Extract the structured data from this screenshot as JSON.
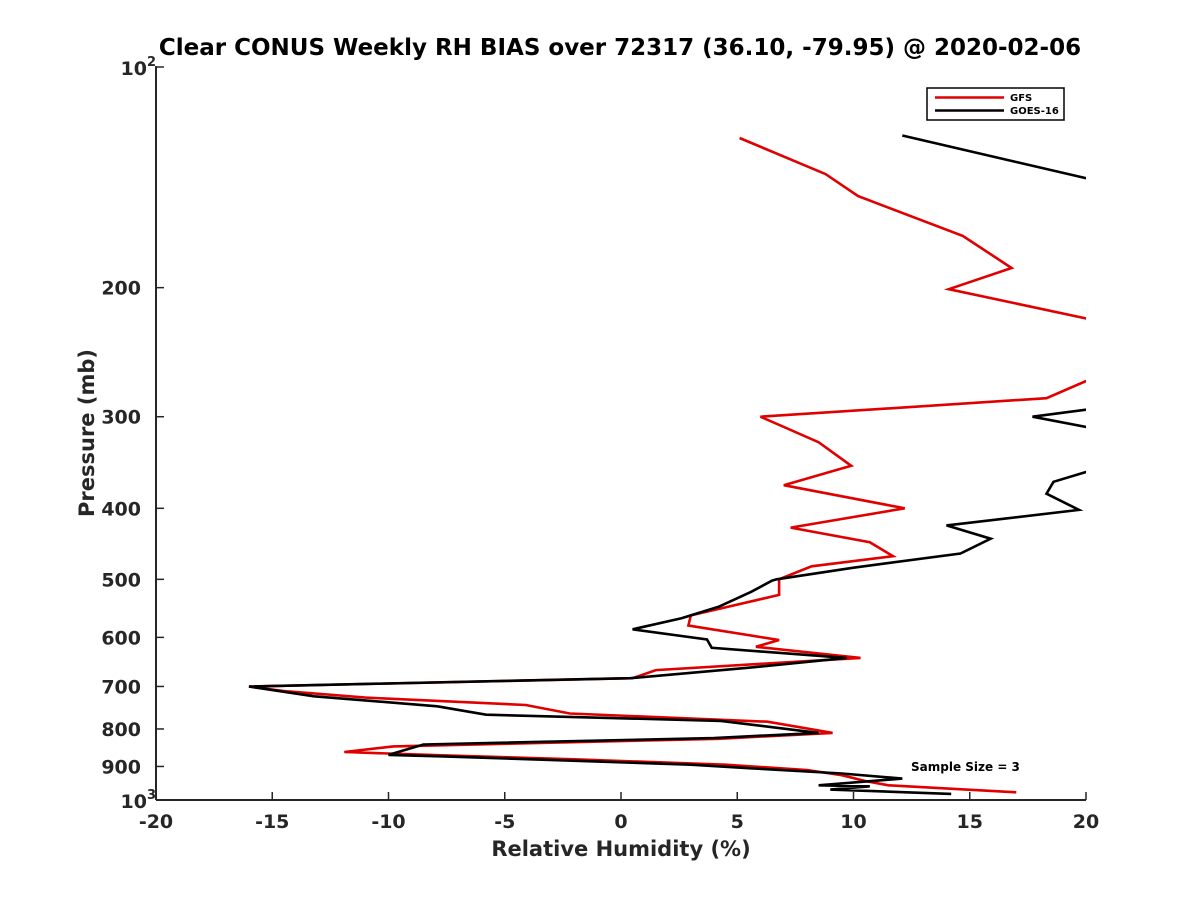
{
  "chart_data": {
    "type": "line",
    "title": "Clear CONUS Weekly RH BIAS over 72317 (36.10, -79.95) @ 2020-02-06",
    "xlabel": "Relative Humidity (%)",
    "ylabel": "Pressure (mb)",
    "xlim": [
      -20,
      20
    ],
    "ylim": [
      100,
      1000
    ],
    "yscale": "log",
    "y_reversed": true,
    "x_ticks": [
      -20,
      -15,
      -10,
      -5,
      0,
      5,
      10,
      15,
      20
    ],
    "y_ticks": [
      {
        "value": 100,
        "base": "10",
        "exp": "2"
      },
      {
        "value": 200,
        "label": "200"
      },
      {
        "value": 300,
        "label": "300"
      },
      {
        "value": 400,
        "label": "400"
      },
      {
        "value": 500,
        "label": "500"
      },
      {
        "value": 600,
        "label": "600"
      },
      {
        "value": 700,
        "label": "700"
      },
      {
        "value": 800,
        "label": "800"
      },
      {
        "value": 900,
        "label": "900"
      },
      {
        "value": 1000,
        "base": "10",
        "exp": "3"
      }
    ],
    "grid": false,
    "legend_position": "top-right",
    "annotation": "Sample Size = 3",
    "series": [
      {
        "name": "GFS",
        "color": "#e00000",
        "points": [
          [
            5.1,
            125
          ],
          [
            8.8,
            140
          ],
          [
            10.2,
            150
          ],
          [
            14.7,
            170
          ],
          [
            16.8,
            188
          ],
          [
            14.1,
            201
          ],
          [
            20.5,
            222
          ],
          [
            20.5,
            264
          ],
          [
            18.3,
            283
          ],
          [
            6.0,
            300
          ],
          [
            8.5,
            325
          ],
          [
            9.9,
            350
          ],
          [
            7.0,
            372
          ],
          [
            12.2,
            400
          ],
          [
            7.3,
            425
          ],
          [
            10.7,
            445
          ],
          [
            11.7,
            465
          ],
          [
            8.2,
            480
          ],
          [
            6.8,
            500
          ],
          [
            6.8,
            525
          ],
          [
            3.0,
            560
          ],
          [
            2.9,
            578
          ],
          [
            6.8,
            605
          ],
          [
            5.8,
            618
          ],
          [
            10.3,
            640
          ],
          [
            1.5,
            665
          ],
          [
            0.5,
            682
          ],
          [
            -16.0,
            700
          ],
          [
            -14.5,
            710
          ],
          [
            -11.0,
            725
          ],
          [
            -4.1,
            742
          ],
          [
            -2.2,
            762
          ],
          [
            6.3,
            782
          ],
          [
            9.1,
            810
          ],
          [
            4.2,
            825
          ],
          [
            -9.8,
            845
          ],
          [
            -11.9,
            860
          ],
          [
            -7.2,
            870
          ],
          [
            -2.0,
            880
          ],
          [
            4.5,
            895
          ],
          [
            8.0,
            910
          ],
          [
            9.5,
            925
          ],
          [
            10.5,
            942
          ],
          [
            11.5,
            955
          ],
          [
            17.0,
            976
          ]
        ]
      },
      {
        "name": "GOES-16",
        "color": "#000000",
        "points": [
          [
            12.1,
            124
          ],
          [
            20.5,
            143
          ],
          [
            20.5,
            292
          ],
          [
            17.7,
            300
          ],
          [
            20.5,
            312
          ],
          [
            20.5,
            353
          ],
          [
            18.6,
            368
          ],
          [
            18.3,
            382
          ],
          [
            19.7,
            402
          ],
          [
            14.0,
            422
          ],
          [
            15.9,
            440
          ],
          [
            14.6,
            461
          ],
          [
            10.0,
            482
          ],
          [
            6.7,
            500
          ],
          [
            6.5,
            502
          ],
          [
            5.6,
            520
          ],
          [
            4.2,
            545
          ],
          [
            2.6,
            565
          ],
          [
            0.5,
            585
          ],
          [
            3.7,
            604
          ],
          [
            3.9,
            620
          ],
          [
            9.7,
            640
          ],
          [
            5.5,
            660
          ],
          [
            0.4,
            682
          ],
          [
            -16.0,
            700
          ],
          [
            -13.2,
            722
          ],
          [
            -7.9,
            745
          ],
          [
            -5.8,
            765
          ],
          [
            4.3,
            780
          ],
          [
            8.5,
            810
          ],
          [
            4.0,
            823
          ],
          [
            -8.5,
            840
          ],
          [
            -10.0,
            868
          ],
          [
            -7.6,
            872
          ],
          [
            -2.1,
            884
          ],
          [
            3.0,
            895
          ],
          [
            5.5,
            905
          ],
          [
            9.5,
            920
          ],
          [
            12.1,
            935
          ],
          [
            8.5,
            955
          ],
          [
            10.7,
            958
          ],
          [
            9.0,
            968
          ],
          [
            14.2,
            981
          ]
        ]
      }
    ]
  }
}
